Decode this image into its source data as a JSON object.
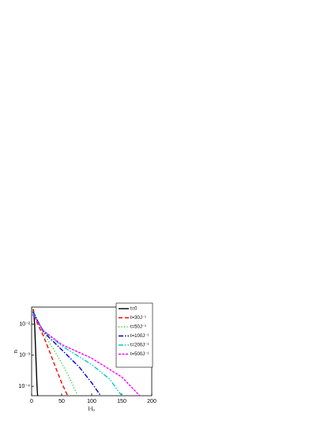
{
  "chart_data": {
    "type": "line",
    "x_label": "l-l₀",
    "y_label": "nₗ",
    "xlim": [
      0,
      200
    ],
    "xticks": [
      0,
      50,
      100,
      150,
      200
    ],
    "ylim": [
      5e-05,
      0.035
    ],
    "y_scale": "log",
    "yticks": [
      {
        "value": 0.01,
        "label": "10⁻²"
      },
      {
        "value": 0.001,
        "label": "10⁻³"
      },
      {
        "value": 0.0001,
        "label": "10⁻⁴"
      }
    ],
    "legend": "upper right",
    "series": [
      {
        "name": "t=0",
        "color": "#000000",
        "dash": "",
        "x": [
          3,
          5,
          7,
          9,
          10
        ],
        "values": [
          0.03,
          0.01,
          0.001,
          0.0001,
          5e-05
        ]
      },
      {
        "name": "t=30J⁻¹",
        "color": "#ff0000",
        "dash": "5,3",
        "x": [
          2,
          10,
          20,
          30,
          40,
          50,
          60
        ],
        "values": [
          0.03,
          0.01,
          0.004,
          0.0013,
          0.0004,
          0.00013,
          5e-05
        ]
      },
      {
        "name": "t=50J⁻¹",
        "color": "#00cc00",
        "dash": "1,2.5",
        "x": [
          2,
          10,
          20,
          40,
          60,
          75
        ],
        "values": [
          0.03,
          0.012,
          0.005,
          0.0012,
          0.00025,
          6e-05
        ]
      },
      {
        "name": "t=100J⁻¹",
        "color": "#0000cc",
        "dash": "6,2,1.5,2",
        "x": [
          2,
          20,
          50,
          80,
          100,
          115
        ],
        "values": [
          0.025,
          0.0055,
          0.0015,
          0.0004,
          0.00013,
          5e-05
        ]
      },
      {
        "name": "t=200J⁻¹",
        "color": "#00cccc",
        "dash": "6,2,1.5,2,1.5,2",
        "x": [
          2,
          20,
          50,
          100,
          130,
          150
        ],
        "values": [
          0.022,
          0.006,
          0.002,
          0.0005,
          0.00017,
          5e-05
        ]
      },
      {
        "name": "t=500J⁻¹",
        "color": "#ff00ff",
        "dash": "3,1.5",
        "x": [
          2,
          20,
          50,
          100,
          150,
          180
        ],
        "values": [
          0.02,
          0.006,
          0.0022,
          0.0008,
          0.0002,
          5e-05
        ]
      }
    ]
  }
}
